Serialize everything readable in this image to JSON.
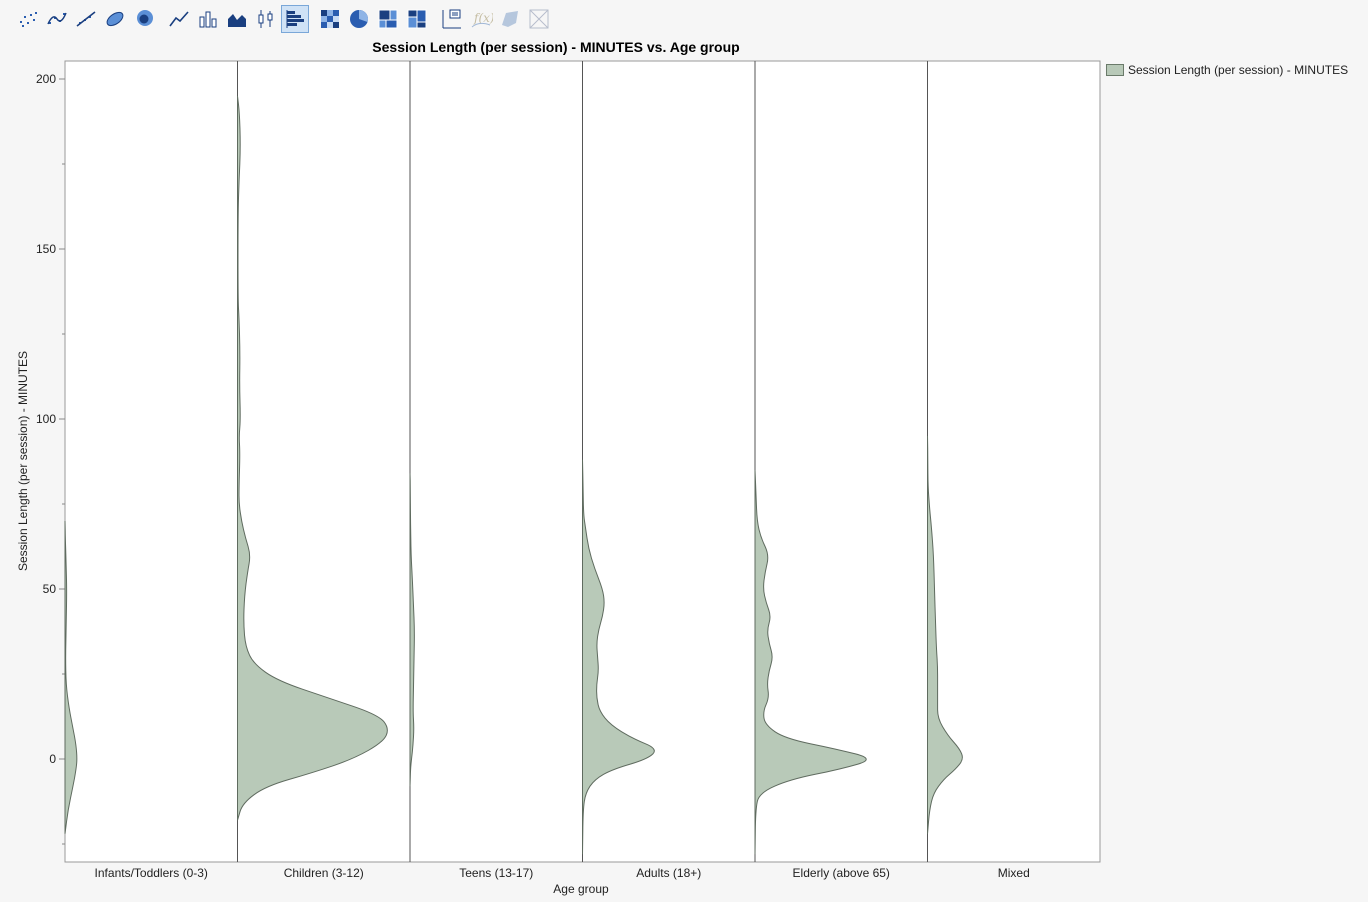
{
  "toolbar": {
    "buttons": [
      {
        "name": "points-icon",
        "active": false,
        "disabled": false
      },
      {
        "name": "smoother-icon",
        "active": false,
        "disabled": false
      },
      {
        "name": "line-of-fit-icon",
        "active": false,
        "disabled": false
      },
      {
        "name": "ellipse-icon",
        "active": false,
        "disabled": false
      },
      {
        "name": "contour-icon",
        "active": false,
        "disabled": false
      },
      {
        "name": "line-icon",
        "active": false,
        "disabled": false
      },
      {
        "name": "bar-icon",
        "active": false,
        "disabled": false
      },
      {
        "name": "area-icon",
        "active": false,
        "disabled": false
      },
      {
        "name": "box-plot-icon",
        "active": false,
        "disabled": false
      },
      {
        "name": "histogram-icon",
        "active": true,
        "disabled": false
      },
      {
        "name": "heatmap-icon",
        "active": false,
        "disabled": false
      },
      {
        "name": "pie-icon",
        "active": false,
        "disabled": false
      },
      {
        "name": "treemap-icon",
        "active": false,
        "disabled": false
      },
      {
        "name": "mosaic-icon",
        "active": false,
        "disabled": false
      },
      {
        "name": "caption-box-icon",
        "active": false,
        "disabled": false
      },
      {
        "name": "formula-icon",
        "active": false,
        "disabled": true
      },
      {
        "name": "map-shape-icon",
        "active": false,
        "disabled": true
      },
      {
        "name": "parallel-icon",
        "active": false,
        "disabled": true
      }
    ]
  },
  "colors": {
    "fill": "#b8c9b8",
    "stroke": "#5f6b5f",
    "axis": "#888888",
    "frame": "#999999",
    "divider": "#555555"
  },
  "chart_data": {
    "type": "violin",
    "title": "Session Length (per session) - MINUTES vs. Age group",
    "xlabel": "Age group",
    "ylabel": "Session Length (per session) - MINUTES",
    "ylim": [
      -30,
      205
    ],
    "yticks": [
      0,
      50,
      100,
      150,
      200
    ],
    "categories": [
      "Infants/Toddlers (0-3)",
      "Children (3-12)",
      "Teens (13-17)",
      "Adults (18+)",
      "Elderly (above 65)",
      "Mixed"
    ],
    "legend": {
      "position": "top-right",
      "entries": [
        "Session Length (per session) - MINUTES"
      ]
    },
    "densities": [
      {
        "category": "Infants/Toddlers (0-3)",
        "points": [
          [
            -22,
            0
          ],
          [
            -15,
            3
          ],
          [
            -8,
            8
          ],
          [
            -3,
            11
          ],
          [
            0,
            12
          ],
          [
            4,
            11
          ],
          [
            9,
            8
          ],
          [
            15,
            4
          ],
          [
            22,
            1
          ],
          [
            30,
            0.5
          ],
          [
            40,
            1.2
          ],
          [
            50,
            1.8
          ],
          [
            58,
            1
          ],
          [
            65,
            0.3
          ],
          [
            70,
            0
          ]
        ]
      },
      {
        "category": "Children (3-12)",
        "points": [
          [
            -18,
            0
          ],
          [
            -13,
            5
          ],
          [
            -8,
            28
          ],
          [
            -4,
            75
          ],
          [
            0,
            115
          ],
          [
            5,
            145
          ],
          [
            9,
            151
          ],
          [
            13,
            140
          ],
          [
            18,
            90
          ],
          [
            23,
            40
          ],
          [
            28,
            16
          ],
          [
            33,
            8
          ],
          [
            40,
            6
          ],
          [
            48,
            7
          ],
          [
            55,
            10
          ],
          [
            60,
            13
          ],
          [
            65,
            8
          ],
          [
            70,
            4
          ],
          [
            75,
            1.5
          ],
          [
            80,
            1.5
          ],
          [
            90,
            2.5
          ],
          [
            95,
            1.5
          ],
          [
            100,
            3
          ],
          [
            110,
            2
          ],
          [
            120,
            2.5
          ],
          [
            130,
            1.5
          ],
          [
            135,
            0.5
          ],
          [
            160,
            0.5
          ],
          [
            170,
            1.5
          ],
          [
            180,
            3
          ],
          [
            190,
            2
          ],
          [
            195,
            0
          ]
        ]
      },
      {
        "category": "Teens (13-17)",
        "points": [
          [
            -8,
            0
          ],
          [
            -3,
            0.5
          ],
          [
            0,
            1.5
          ],
          [
            4,
            3
          ],
          [
            9,
            4
          ],
          [
            14,
            3
          ],
          [
            22,
            3.5
          ],
          [
            30,
            4
          ],
          [
            38,
            4.5
          ],
          [
            45,
            3.5
          ],
          [
            52,
            2.5
          ],
          [
            60,
            1
          ],
          [
            70,
            0.5
          ],
          [
            80,
            0.3
          ],
          [
            84,
            0
          ]
        ]
      },
      {
        "category": "Adults (18+)",
        "points": [
          [
            -28,
            0
          ],
          [
            -15,
            0.5
          ],
          [
            -10,
            3
          ],
          [
            -6,
            12
          ],
          [
            -3,
            30
          ],
          [
            0,
            65
          ],
          [
            3,
            75
          ],
          [
            6,
            50
          ],
          [
            10,
            28
          ],
          [
            14,
            17
          ],
          [
            18,
            14
          ],
          [
            22,
            14
          ],
          [
            26,
            16
          ],
          [
            30,
            15
          ],
          [
            34,
            14
          ],
          [
            38,
            16
          ],
          [
            42,
            20
          ],
          [
            46,
            22
          ],
          [
            50,
            20
          ],
          [
            56,
            12
          ],
          [
            62,
            6
          ],
          [
            68,
            3
          ],
          [
            72,
            1
          ],
          [
            80,
            0.5
          ],
          [
            88,
            0
          ]
        ]
      },
      {
        "category": "Elderly (above 65)",
        "points": [
          [
            -28,
            0
          ],
          [
            -15,
            0.5
          ],
          [
            -10,
            4
          ],
          [
            -6,
            35
          ],
          [
            -3,
            85
          ],
          [
            0,
            120
          ],
          [
            3,
            80
          ],
          [
            6,
            30
          ],
          [
            10,
            10
          ],
          [
            14,
            8
          ],
          [
            18,
            14
          ],
          [
            22,
            12
          ],
          [
            26,
            14
          ],
          [
            30,
            18
          ],
          [
            34,
            14
          ],
          [
            38,
            12
          ],
          [
            42,
            16
          ],
          [
            46,
            11
          ],
          [
            50,
            8
          ],
          [
            55,
            10
          ],
          [
            60,
            14
          ],
          [
            65,
            6
          ],
          [
            70,
            2
          ],
          [
            78,
            1
          ],
          [
            85,
            0
          ]
        ]
      },
      {
        "category": "Mixed",
        "points": [
          [
            -22,
            0
          ],
          [
            -15,
            2
          ],
          [
            -10,
            6
          ],
          [
            -6,
            16
          ],
          [
            -3,
            28
          ],
          [
            0,
            36
          ],
          [
            3,
            32
          ],
          [
            7,
            20
          ],
          [
            12,
            10
          ],
          [
            17,
            10
          ],
          [
            22,
            10
          ],
          [
            27,
            10
          ],
          [
            32,
            9
          ],
          [
            40,
            8
          ],
          [
            50,
            7
          ],
          [
            60,
            6
          ],
          [
            68,
            4
          ],
          [
            74,
            2
          ],
          [
            80,
            0.5
          ],
          [
            88,
            0.3
          ],
          [
            95,
            0
          ]
        ]
      }
    ]
  }
}
